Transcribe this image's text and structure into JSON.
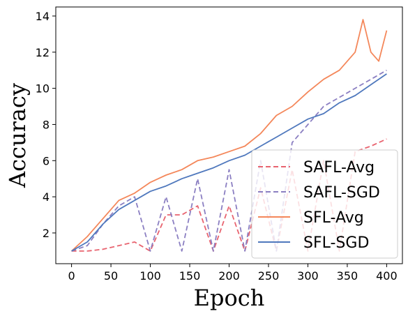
{
  "chart_data": {
    "type": "line",
    "title": "",
    "xlabel": "Epoch",
    "ylabel": "Accuracy",
    "xlim": [
      -20,
      420
    ],
    "ylim": [
      0.3,
      14.5
    ],
    "x_ticks": [
      0,
      50,
      100,
      150,
      200,
      250,
      300,
      350,
      400
    ],
    "y_ticks": [
      2,
      4,
      6,
      8,
      10,
      12,
      14
    ],
    "grid": false,
    "legend_position": "bottom-right",
    "series": [
      {
        "name": "SAFL-Avg",
        "color": "#e8636f",
        "dash": "dashed",
        "x": [
          0,
          20,
          40,
          60,
          80,
          100,
          120,
          140,
          160,
          180,
          200,
          220,
          240,
          260,
          280,
          300,
          320,
          340,
          360,
          380,
          400
        ],
        "y": [
          1.0,
          1.0,
          1.1,
          1.3,
          1.5,
          1.0,
          3.0,
          3.0,
          3.5,
          1.0,
          3.5,
          1.0,
          4.5,
          1.0,
          5.5,
          1.0,
          6.0,
          1.0,
          6.5,
          6.8,
          7.2
        ]
      },
      {
        "name": "SAFL-SGD",
        "color": "#8b7fc2",
        "dash": "dashed",
        "x": [
          0,
          20,
          40,
          60,
          80,
          100,
          120,
          140,
          160,
          180,
          200,
          220,
          240,
          260,
          280,
          300,
          320,
          340,
          360,
          380,
          400
        ],
        "y": [
          1.0,
          1.3,
          2.5,
          3.5,
          4.0,
          1.0,
          4.0,
          1.0,
          5.0,
          1.0,
          5.5,
          1.0,
          6.0,
          1.0,
          7.0,
          8.0,
          9.0,
          9.5,
          10.0,
          10.5,
          11.0
        ]
      },
      {
        "name": "SFL-Avg",
        "color": "#f4875a",
        "dash": "solid",
        "x": [
          0,
          20,
          40,
          60,
          80,
          100,
          120,
          140,
          160,
          180,
          200,
          220,
          240,
          260,
          280,
          300,
          320,
          340,
          360,
          370,
          380,
          390,
          400
        ],
        "y": [
          1.0,
          1.8,
          2.8,
          3.8,
          4.2,
          4.8,
          5.2,
          5.5,
          6.0,
          6.2,
          6.5,
          6.8,
          7.5,
          8.5,
          9.0,
          9.8,
          10.5,
          11.0,
          12.0,
          13.8,
          12.0,
          11.5,
          13.2
        ]
      },
      {
        "name": "SFL-SGD",
        "color": "#4f78bd",
        "dash": "solid",
        "x": [
          0,
          20,
          40,
          60,
          80,
          100,
          120,
          140,
          160,
          180,
          200,
          220,
          240,
          260,
          280,
          300,
          320,
          340,
          360,
          380,
          400
        ],
        "y": [
          1.0,
          1.5,
          2.5,
          3.3,
          3.8,
          4.3,
          4.6,
          5.0,
          5.3,
          5.6,
          6.0,
          6.3,
          6.8,
          7.3,
          7.8,
          8.3,
          8.6,
          9.2,
          9.6,
          10.2,
          10.8
        ]
      }
    ]
  }
}
